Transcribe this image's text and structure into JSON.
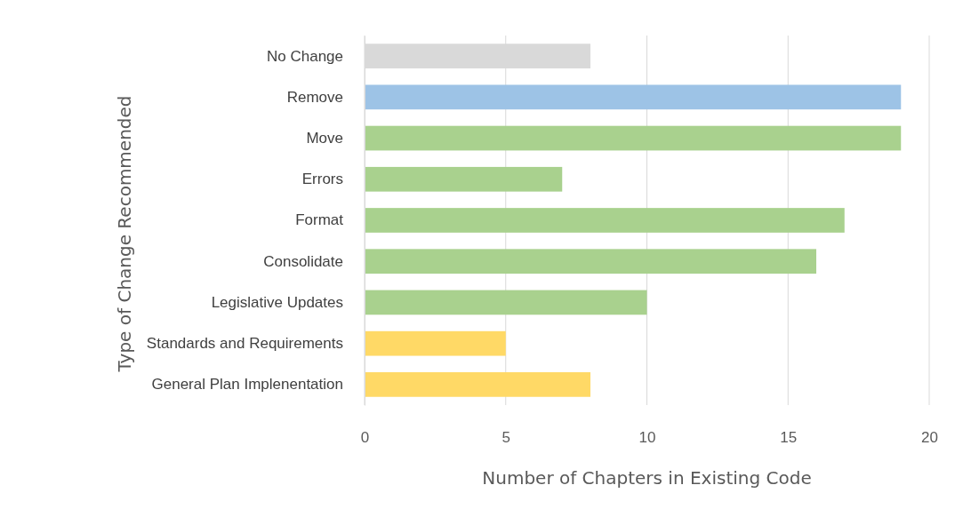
{
  "chart_data": {
    "type": "bar",
    "orientation": "horizontal",
    "xlabel": "Number of Chapters in Existing Code",
    "ylabel": "Type of Change Recommended",
    "categories": [
      "No Change",
      "Remove",
      "Move",
      "Errors",
      "Format",
      "Consolidate",
      "Legislative Updates",
      "Standards and Requirements",
      "General Plan Implenentation"
    ],
    "values": [
      8,
      19,
      19,
      7,
      17,
      16,
      10,
      5,
      8
    ],
    "colors": [
      "#d9d9d9",
      "#9dc3e6",
      "#a9d18e",
      "#a9d18e",
      "#a9d18e",
      "#a9d18e",
      "#a9d18e",
      "#ffd966",
      "#ffd966"
    ],
    "xlim": [
      0,
      20
    ],
    "xticks": [
      0,
      5,
      10,
      15,
      20
    ],
    "grid": "x"
  }
}
